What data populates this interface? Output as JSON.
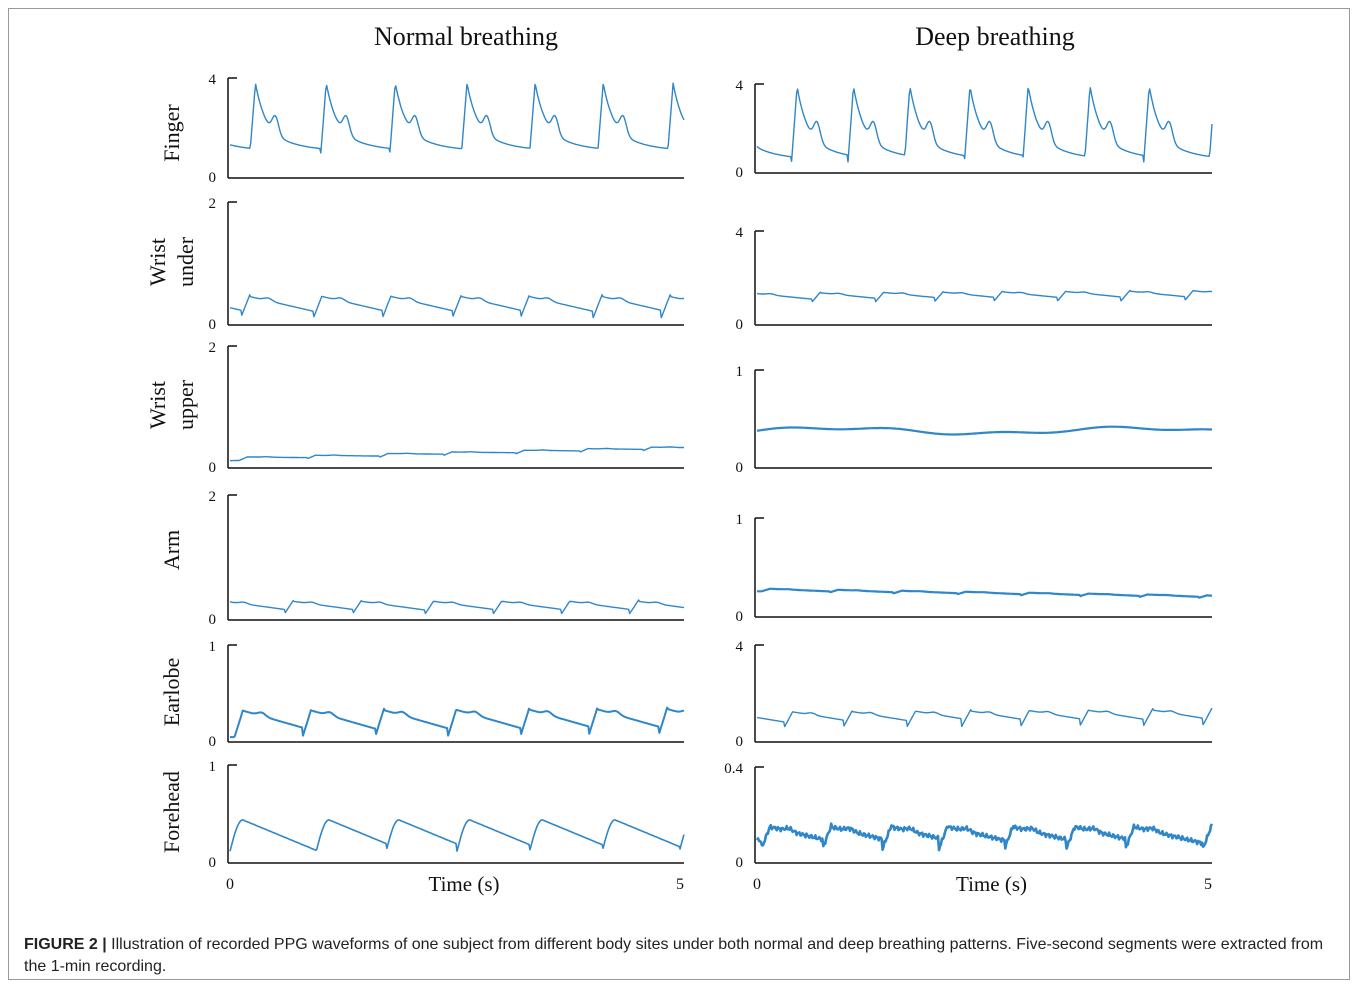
{
  "figure": {
    "caption_label": "FIGURE 2 |",
    "caption_text": " Illustration of recorded PPG waveforms of one subject from different body sites under both normal and deep breathing patterns. Five-second segments were extracted from the 1-min recording."
  },
  "chart_data": [
    {
      "type": "line",
      "title": "Normal breathing",
      "xlabel": "Time (s)",
      "xlim": [
        0,
        5
      ],
      "xticks": [
        "0",
        "5"
      ],
      "panels": [
        {
          "row_label": [
            "Finger"
          ],
          "ylim": [
            0,
            4
          ],
          "yticks": [
            "0",
            "4"
          ],
          "baseline": 1.0,
          "amplitude": 2.8,
          "drift": 0.0,
          "beats": [
            0.22,
            1.0,
            1.76,
            2.55,
            3.3,
            4.05,
            4.82
          ],
          "waveform": "sharp",
          "color": "#2f86c8",
          "stroke": 1.4
        },
        {
          "row_label": [
            "Wrist",
            "under"
          ],
          "ylim": [
            0,
            2
          ],
          "yticks": [
            "0",
            "2"
          ],
          "baseline": 0.12,
          "amplitude": 0.38,
          "drift": 0.0,
          "beats": [
            0.12,
            0.92,
            1.68,
            2.45,
            3.2,
            4.0,
            4.75
          ],
          "waveform": "ppg",
          "color": "#2f86c8",
          "stroke": 1.4
        },
        {
          "row_label": [
            "Wrist",
            "upper"
          ],
          "ylim": [
            0,
            2
          ],
          "yticks": [
            "0",
            "2"
          ],
          "baseline": 0.12,
          "amplitude": 0.06,
          "drift": 0.18,
          "beats": [
            0.85,
            1.65,
            2.35,
            3.15,
            3.85,
            4.55
          ],
          "waveform": "ppg",
          "color": "#2f86c8",
          "stroke": 1.4
        },
        {
          "row_label": [
            "Arm"
          ],
          "ylim": [
            0,
            2
          ],
          "yticks": [
            "0",
            "2"
          ],
          "baseline": 0.1,
          "amplitude": 0.22,
          "drift": 0.0,
          "beats": [
            0.6,
            1.35,
            2.15,
            2.9,
            3.65,
            4.4
          ],
          "waveform": "ppg",
          "color": "#2f86c8",
          "stroke": 1.4
        },
        {
          "row_label": [
            "Earlobe"
          ],
          "ylim": [
            0,
            1
          ],
          "yticks": [
            "0",
            "1"
          ],
          "baseline": 0.05,
          "amplitude": 0.3,
          "drift": 0.02,
          "beats": [
            0.8,
            1.6,
            2.4,
            3.2,
            3.95,
            4.72
          ],
          "waveform": "ppg",
          "color": "#2f86c8",
          "stroke": 2.0
        },
        {
          "row_label": [
            "Forehead"
          ],
          "ylim": [
            0,
            1
          ],
          "yticks": [
            "0",
            "1"
          ],
          "baseline": 0.12,
          "amplitude": 0.32,
          "drift": 0.0,
          "beats": [
            0.0,
            0.95,
            1.72,
            2.5,
            3.3,
            4.1,
            4.95
          ],
          "waveform": "smooth",
          "color": "#2f86c8",
          "stroke": 1.6
        }
      ]
    },
    {
      "type": "line",
      "title": "Deep breathing",
      "xlabel": "Time (s)",
      "xlim": [
        0,
        5
      ],
      "xticks": [
        "0",
        "5"
      ],
      "panels": [
        {
          "row_label": [],
          "ylim": [
            0,
            4
          ],
          "yticks": [
            "0",
            "4"
          ],
          "baseline": 0.5,
          "amplitude": 3.4,
          "drift": 0.0,
          "beats": [
            0.38,
            1.0,
            1.62,
            2.28,
            2.92,
            3.6,
            4.25,
            4.97
          ],
          "waveform": "sharp",
          "color": "#2f86c8",
          "stroke": 1.4
        },
        {
          "row_label": [],
          "ylim": [
            0,
            4
          ],
          "yticks": [
            "0",
            "4"
          ],
          "baseline": 0.95,
          "amplitude": 0.45,
          "drift": 0.1,
          "beats": [
            0.6,
            1.3,
            1.95,
            2.6,
            3.3,
            4.0,
            4.7
          ],
          "waveform": "ppg",
          "color": "#2f86c8",
          "stroke": 1.4
        },
        {
          "row_label": [],
          "ylim": [
            0,
            1
          ],
          "yticks": [
            "0",
            "1"
          ],
          "baseline": 0.38,
          "amplitude": 0.0,
          "drift": 0.0,
          "beats": [],
          "waveform": "flat",
          "color": "#2f86c8",
          "stroke": 2.2
        },
        {
          "row_label": [],
          "ylim": [
            0,
            1
          ],
          "yticks": [
            "0",
            "1"
          ],
          "baseline": 0.26,
          "amplitude": 0.03,
          "drift": -0.07,
          "beats": [
            0.8,
            1.5,
            2.2,
            2.9,
            3.55,
            4.2,
            4.85
          ],
          "waveform": "ppg",
          "color": "#2f86c8",
          "stroke": 2.2
        },
        {
          "row_label": [],
          "ylim": [
            0,
            4
          ],
          "yticks": [
            "0",
            "4"
          ],
          "baseline": 0.6,
          "amplitude": 0.7,
          "drift": 0.1,
          "beats": [
            0.3,
            0.95,
            1.65,
            2.25,
            2.9,
            3.55,
            4.25,
            4.9
          ],
          "waveform": "ppg",
          "color": "#2f86c8",
          "stroke": 1.4
        },
        {
          "row_label": [],
          "ylim": [
            0,
            0.4
          ],
          "yticks": [
            "0",
            "0.4"
          ],
          "baseline": 0.06,
          "amplitude": 0.1,
          "drift": 0.0,
          "beats": [
            0.05,
            0.72,
            1.38,
            2.0,
            2.72,
            3.4,
            4.05,
            4.9
          ],
          "waveform": "noisy",
          "color": "#2f86c8",
          "stroke": 2.6
        }
      ]
    }
  ]
}
